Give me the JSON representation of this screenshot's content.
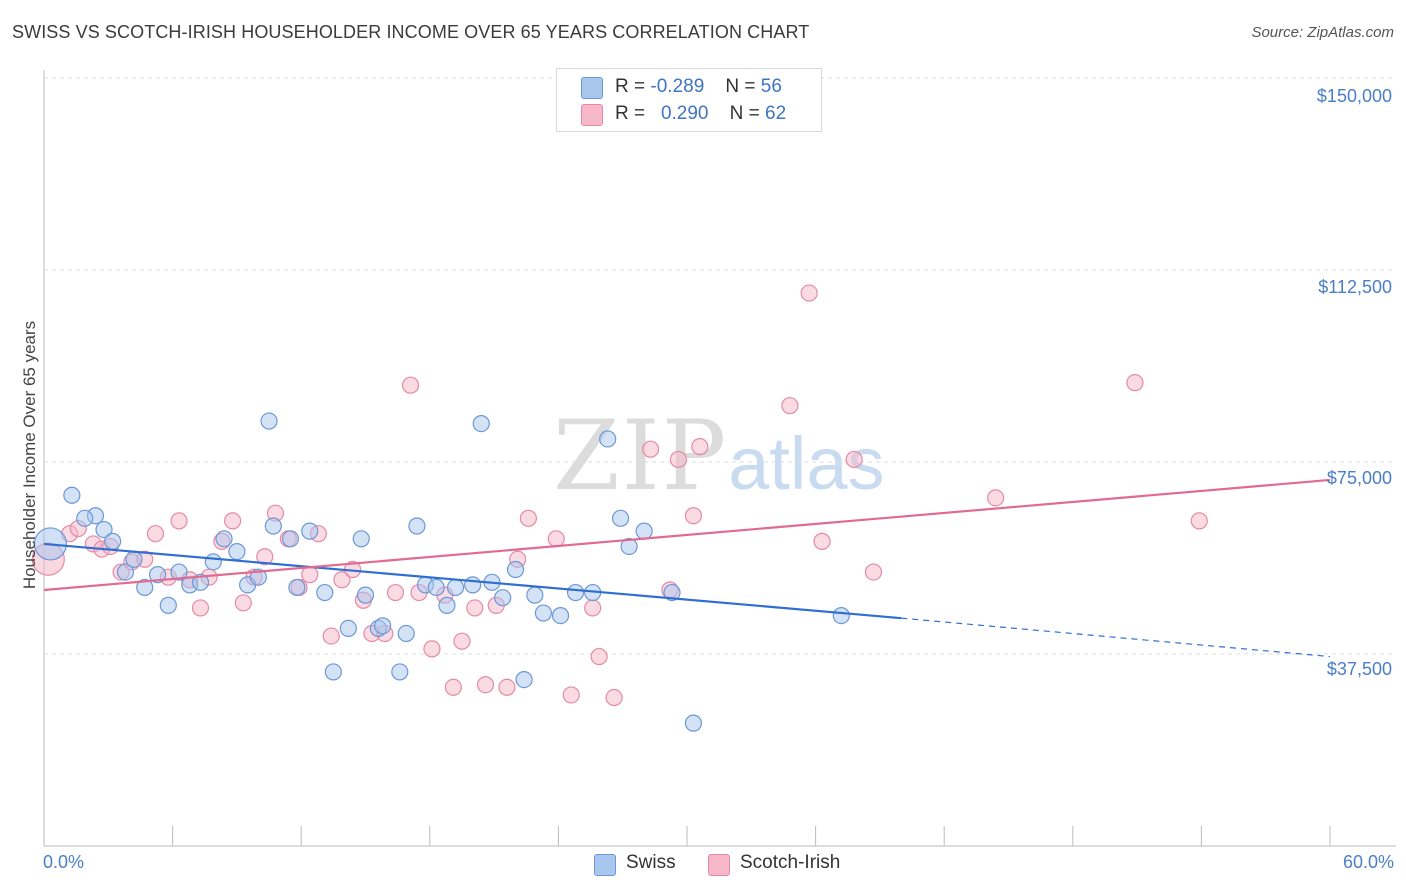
{
  "title": "SWISS VS SCOTCH-IRISH HOUSEHOLDER INCOME OVER 65 YEARS CORRELATION CHART",
  "source": "Source: ZipAtlas.com",
  "watermark": {
    "part1": "ZIP",
    "part2": "atlas"
  },
  "legend": {
    "r_label": "R =",
    "n_label": "N =",
    "rows": [
      {
        "r": "-0.289",
        "n": "56",
        "color": "#a9c6ee"
      },
      {
        "r": "0.290",
        "n": "62",
        "color": "#f6b8c9"
      }
    ]
  },
  "bottom_legend": [
    "Swiss",
    "Scotch-Irish"
  ],
  "colors": {
    "swiss_fill": "#a9c6ee",
    "swiss_stroke": "#6b98d6",
    "swiss_line": "#2f6fd0",
    "scotch_fill": "#f6b8c9",
    "scotch_stroke": "#e58aa6",
    "scotch_line": "#e06a92",
    "tick_label": "#4a7ec8",
    "grid": "#dddddd"
  },
  "chart_data": {
    "type": "scatter",
    "title": "SWISS VS SCOTCH-IRISH HOUSEHOLDER INCOME OVER 65 YEARS CORRELATION CHART",
    "xlabel": "",
    "ylabel": "Householder Income Over 65 years",
    "xlim": [
      0,
      60
    ],
    "ylim": [
      15000,
      155000
    ],
    "x_tick_labels": [
      "0.0%",
      "60.0%"
    ],
    "y_ticks": [
      37500,
      75000,
      112500,
      150000
    ],
    "y_tick_labels": [
      "$37,500",
      "$75,000",
      "$112,500",
      "$150,000"
    ],
    "grid": "dashed horizontal",
    "series": [
      {
        "name": "Swiss",
        "R": -0.289,
        "N": 56,
        "trend": {
          "x": [
            0,
            40
          ],
          "y": [
            59000,
            44500
          ],
          "dashed_to": [
            60,
            37000
          ]
        },
        "points": [
          [
            0.3,
            59000
          ],
          [
            1.3,
            68500
          ],
          [
            2.4,
            64500
          ],
          [
            1.9,
            64000
          ],
          [
            2.8,
            61800
          ],
          [
            3.2,
            59500
          ],
          [
            3.8,
            53500
          ],
          [
            4.2,
            56000
          ],
          [
            4.7,
            50500
          ],
          [
            5.3,
            53000
          ],
          [
            5.8,
            47000
          ],
          [
            6.3,
            53500
          ],
          [
            6.8,
            51000
          ],
          [
            7.3,
            51500
          ],
          [
            7.9,
            55500
          ],
          [
            8.4,
            60000
          ],
          [
            9.0,
            57500
          ],
          [
            9.5,
            51000
          ],
          [
            10.0,
            52500
          ],
          [
            10.5,
            83000
          ],
          [
            10.7,
            62500
          ],
          [
            11.5,
            60000
          ],
          [
            11.8,
            50500
          ],
          [
            12.4,
            61500
          ],
          [
            13.1,
            49500
          ],
          [
            13.5,
            34000
          ],
          [
            14.2,
            42500
          ],
          [
            14.8,
            60000
          ],
          [
            15.0,
            49000
          ],
          [
            15.6,
            42500
          ],
          [
            15.8,
            43000
          ],
          [
            16.6,
            34000
          ],
          [
            16.9,
            41500
          ],
          [
            17.4,
            62500
          ],
          [
            17.8,
            51000
          ],
          [
            18.3,
            50500
          ],
          [
            18.8,
            47000
          ],
          [
            19.2,
            50500
          ],
          [
            20.0,
            51000
          ],
          [
            20.4,
            82500
          ],
          [
            20.9,
            51500
          ],
          [
            21.4,
            48500
          ],
          [
            22.0,
            54000
          ],
          [
            22.4,
            32500
          ],
          [
            22.9,
            49000
          ],
          [
            23.3,
            45500
          ],
          [
            24.1,
            45000
          ],
          [
            24.8,
            49500
          ],
          [
            25.6,
            49500
          ],
          [
            26.3,
            79500
          ],
          [
            26.9,
            64000
          ],
          [
            27.3,
            58500
          ],
          [
            28.0,
            61500
          ],
          [
            29.3,
            49500
          ],
          [
            30.3,
            24000
          ],
          [
            37.2,
            45000
          ]
        ]
      },
      {
        "name": "Scotch-Irish",
        "R": 0.29,
        "N": 62,
        "trend": {
          "x": [
            0,
            60
          ],
          "y": [
            50000,
            71500
          ]
        },
        "points": [
          [
            0.2,
            56000
          ],
          [
            1.2,
            61000
          ],
          [
            1.6,
            62000
          ],
          [
            2.3,
            59000
          ],
          [
            2.7,
            58000
          ],
          [
            3.1,
            58500
          ],
          [
            3.6,
            53500
          ],
          [
            4.1,
            55500
          ],
          [
            4.7,
            56000
          ],
          [
            5.2,
            61000
          ],
          [
            5.8,
            52500
          ],
          [
            6.3,
            63500
          ],
          [
            6.8,
            52000
          ],
          [
            7.3,
            46500
          ],
          [
            7.7,
            52500
          ],
          [
            8.3,
            59500
          ],
          [
            8.8,
            63500
          ],
          [
            9.3,
            47500
          ],
          [
            9.8,
            52500
          ],
          [
            10.3,
            56500
          ],
          [
            10.8,
            65000
          ],
          [
            11.4,
            60000
          ],
          [
            11.9,
            50500
          ],
          [
            12.4,
            53000
          ],
          [
            12.8,
            61000
          ],
          [
            13.4,
            41000
          ],
          [
            13.9,
            52000
          ],
          [
            14.4,
            54000
          ],
          [
            14.9,
            48000
          ],
          [
            15.3,
            41500
          ],
          [
            15.9,
            41500
          ],
          [
            16.4,
            49500
          ],
          [
            17.1,
            90000
          ],
          [
            17.5,
            49500
          ],
          [
            18.1,
            38500
          ],
          [
            18.7,
            49000
          ],
          [
            19.1,
            31000
          ],
          [
            19.5,
            40000
          ],
          [
            20.1,
            46500
          ],
          [
            20.6,
            31500
          ],
          [
            21.1,
            47000
          ],
          [
            21.6,
            31000
          ],
          [
            22.1,
            56000
          ],
          [
            22.6,
            64000
          ],
          [
            23.9,
            60000
          ],
          [
            24.6,
            29500
          ],
          [
            25.6,
            46500
          ],
          [
            25.9,
            37000
          ],
          [
            26.6,
            29000
          ],
          [
            28.3,
            77500
          ],
          [
            29.2,
            50000
          ],
          [
            29.6,
            75500
          ],
          [
            30.3,
            64500
          ],
          [
            30.6,
            78000
          ],
          [
            34.8,
            86000
          ],
          [
            35.7,
            108000
          ],
          [
            36.3,
            59500
          ],
          [
            37.8,
            75500
          ],
          [
            38.7,
            53500
          ],
          [
            44.4,
            68000
          ],
          [
            50.9,
            90500
          ],
          [
            53.9,
            63500
          ]
        ]
      }
    ]
  }
}
